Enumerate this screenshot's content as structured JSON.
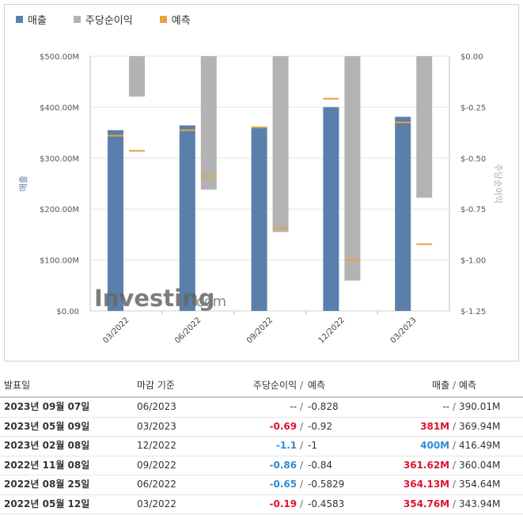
{
  "legend": [
    {
      "label": "매출",
      "color": "#5a7fab"
    },
    {
      "label": "주당순이익",
      "color": "#b3b3b3"
    },
    {
      "label": "예측",
      "color": "#e8a33b"
    }
  ],
  "watermark": {
    "main": "Investing",
    "suffix": ".com"
  },
  "chart_data": {
    "type": "bar",
    "categories": [
      "03/2022",
      "06/2022",
      "09/2022",
      "12/2022",
      "03/2023"
    ],
    "series": [
      {
        "name": "매출",
        "axis": "left",
        "values": [
          354.76,
          364.13,
          361.62,
          400,
          381
        ],
        "color": "#5a7fab"
      },
      {
        "name": "주당순이익",
        "axis": "right",
        "values": [
          -0.19,
          -0.65,
          -0.86,
          -1.1,
          -0.69
        ],
        "color": "#b3b3b3"
      }
    ],
    "forecast": {
      "name": "예측",
      "color": "#e8a33b",
      "revenue": [
        343.94,
        354.64,
        360.04,
        416.49,
        369.94
      ],
      "eps": [
        -0.4583,
        -0.5829,
        -0.84,
        -1,
        -0.92
      ]
    },
    "ylabel_left": "매출",
    "ylabel_right": "주당순이익",
    "ylim_left": [
      0,
      500
    ],
    "ylim_right": [
      -1.25,
      0.01
    ],
    "left_ticks": [
      "$0.00",
      "$100.00M",
      "$200.00M",
      "$300.00M",
      "$400.00M",
      "$500.00M"
    ],
    "right_ticks": [
      "$-1.25",
      "$-1.00",
      "$-0.75",
      "$-0.50",
      "$-0.25",
      "$0.00"
    ],
    "grid": true
  },
  "table": {
    "headers": {
      "date": "발표일",
      "period": "마감 기준",
      "eps": "주당순이익",
      "eps_forecast": "예측",
      "revenue": "매출",
      "revenue_forecast": "예측",
      "slash": "/"
    },
    "rows": [
      {
        "date": "2023년 09월 07일",
        "period": "06/2023",
        "eps": "--",
        "eps_tone": "neutral",
        "eps_forecast": "-0.828",
        "revenue": "--",
        "rev_tone": "neutral",
        "revenue_forecast": "390.01M"
      },
      {
        "date": "2023년 05월 09일",
        "period": "03/2023",
        "eps": "-0.69",
        "eps_tone": "neg",
        "eps_forecast": "-0.92",
        "revenue": "381M",
        "rev_tone": "neg",
        "revenue_forecast": "369.94M"
      },
      {
        "date": "2023년 02월 08일",
        "period": "12/2022",
        "eps": "-1.1",
        "eps_tone": "pos",
        "eps_forecast": "-1",
        "revenue": "400M",
        "rev_tone": "pos",
        "revenue_forecast": "416.49M"
      },
      {
        "date": "2022년 11월 08일",
        "period": "09/2022",
        "eps": "-0.86",
        "eps_tone": "pos",
        "eps_forecast": "-0.84",
        "revenue": "361.62M",
        "rev_tone": "neg",
        "revenue_forecast": "360.04M"
      },
      {
        "date": "2022년 08월 25일",
        "period": "06/2022",
        "eps": "-0.65",
        "eps_tone": "pos",
        "eps_forecast": "-0.5829",
        "revenue": "364.13M",
        "rev_tone": "neg",
        "revenue_forecast": "354.64M"
      },
      {
        "date": "2022년 05월 12일",
        "period": "03/2022",
        "eps": "-0.19",
        "eps_tone": "neg",
        "eps_forecast": "-0.4583",
        "revenue": "354.76M",
        "rev_tone": "neg",
        "revenue_forecast": "343.94M"
      }
    ]
  }
}
